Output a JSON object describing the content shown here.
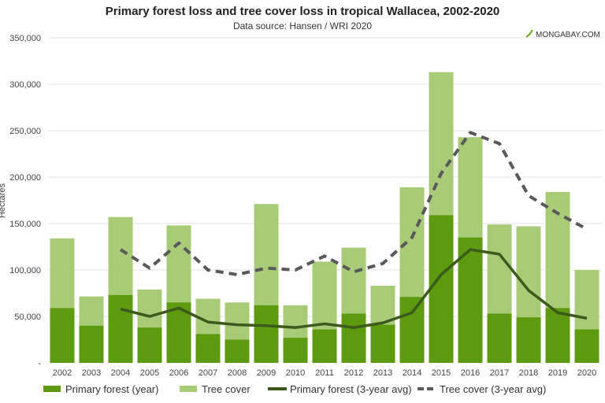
{
  "chart_data": {
    "type": "bar",
    "title": "Primary forest loss and tree cover loss in tropical Wallacea, 2002-2020",
    "subtitle": "Data source: Hansen / WRI 2020",
    "watermark": "MONGABAY.COM",
    "ylabel": "Hectares",
    "xlabel": "",
    "ylim": [
      0,
      350000
    ],
    "yticks": [
      "-",
      "50,000",
      "100,000",
      "150,000",
      "200,000",
      "250,000",
      "300,000",
      "350,000"
    ],
    "grid": true,
    "legend_position": "bottom",
    "categories": [
      "2002",
      "2003",
      "2004",
      "2005",
      "2006",
      "2007",
      "2008",
      "2009",
      "2010",
      "2011",
      "2012",
      "2013",
      "2014",
      "2015",
      "2016",
      "2017",
      "2018",
      "2019",
      "2020"
    ],
    "series": [
      {
        "name": "Primary forest (year)",
        "kind": "bar",
        "color": "#5e9a0e",
        "values": [
          59000,
          40000,
          73000,
          38000,
          65000,
          31000,
          25000,
          62000,
          27000,
          36000,
          53000,
          41000,
          71000,
          159000,
          135000,
          53000,
          49000,
          59000,
          36000
        ]
      },
      {
        "name": "Tree cover",
        "kind": "bar",
        "color": "#a8cb78",
        "values": [
          134000,
          71500,
          157000,
          79000,
          148000,
          69000,
          65000,
          171000,
          62000,
          109000,
          124000,
          83000,
          189000,
          313000,
          243000,
          149000,
          147000,
          184000,
          100000
        ]
      },
      {
        "name": "Primary forest (3-year avg)",
        "kind": "line",
        "color": "#3b5a1c",
        "values": [
          null,
          null,
          58000,
          50000,
          59000,
          44000,
          41000,
          40000,
          38000,
          42000,
          38000,
          43000,
          54000,
          95000,
          122000,
          117000,
          78000,
          54000,
          48000
        ]
      },
      {
        "name": "Tree cover (3-year avg)",
        "kind": "dashed-line",
        "color": "#595959",
        "values": [
          null,
          null,
          122000,
          102000,
          129000,
          100000,
          95000,
          102000,
          100000,
          115000,
          98000,
          107000,
          135000,
          204000,
          248000,
          236000,
          180000,
          161000,
          144000
        ]
      }
    ]
  }
}
